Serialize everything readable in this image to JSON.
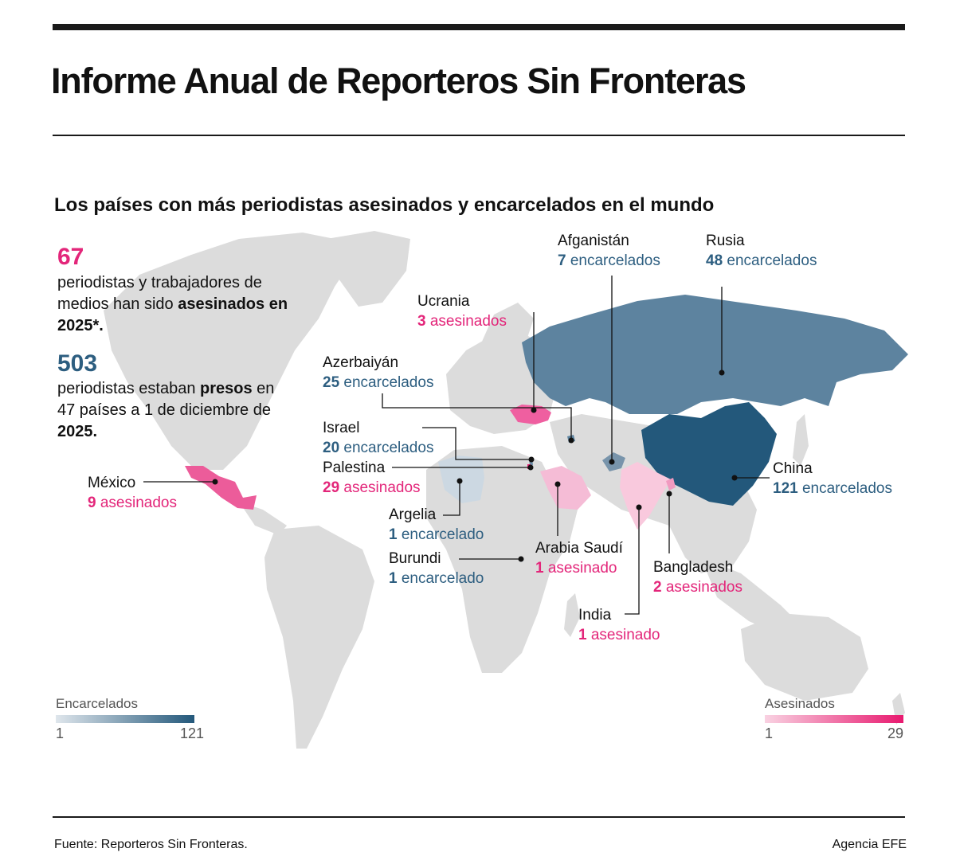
{
  "header": {
    "title": "Informe Anual de Reporteros Sin Fronteras",
    "subtitle": "Los países con más periodistas asesinados y encarcelados en el mundo"
  },
  "stats": {
    "killed_number": "67",
    "killed_text_1": "periodistas y trabajadores de medios han sido ",
    "killed_text_bold": "asesinados en 2025",
    "killed_text_2": "*.",
    "jailed_number": "503",
    "jailed_text_1": "periodistas estaban ",
    "jailed_text_bold": "presos",
    "jailed_text_2": " en 47 países a 1 de diciembre de ",
    "jailed_text_bold_2": "2025",
    "jailed_text_3": "."
  },
  "countries": [
    {
      "name": "Afganistán",
      "count": "7",
      "unit": "encarcelados",
      "type": "jailed"
    },
    {
      "name": "Rusia",
      "count": "48",
      "unit": "encarcelados",
      "type": "jailed"
    },
    {
      "name": "Ucrania",
      "count": "3",
      "unit": "asesinados",
      "type": "killed"
    },
    {
      "name": "Azerbaiyán",
      "count": "25",
      "unit": "encarcelados",
      "type": "jailed"
    },
    {
      "name": "Israel",
      "count": "20",
      "unit": "encarcelados",
      "type": "jailed"
    },
    {
      "name": "Palestina",
      "count": "29",
      "unit": "asesinados",
      "type": "killed"
    },
    {
      "name": "México",
      "count": "9",
      "unit": "asesinados",
      "type": "killed"
    },
    {
      "name": "Argelia",
      "count": "1",
      "unit": "encarcelado",
      "type": "jailed"
    },
    {
      "name": "Burundi",
      "count": "1",
      "unit": "encarcelado",
      "type": "jailed"
    },
    {
      "name": "Arabia Saudí",
      "count": "1",
      "unit": "asesinado",
      "type": "killed"
    },
    {
      "name": "China",
      "count": "121",
      "unit": "encarcelados",
      "type": "jailed"
    },
    {
      "name": "Bangladesh",
      "count": "2",
      "unit": "asesinados",
      "type": "killed"
    },
    {
      "name": "India",
      "count": "1",
      "unit": "asesinado",
      "type": "killed"
    }
  ],
  "legend": {
    "jailed": {
      "title": "Encarcelados",
      "min": "1",
      "max": "121",
      "color_min": "#dfe6ec",
      "color_max": "#23587b"
    },
    "killed": {
      "title": "Asesinados",
      "min": "1",
      "max": "29",
      "color_min": "#f9d2e2",
      "color_max": "#e8196f"
    }
  },
  "colors": {
    "base_land": "#dcdcdc",
    "jailed_text": "#2d5e80",
    "killed_text": "#e3267a"
  },
  "footer": {
    "source": "Fuente: Reporteros Sin Fronteras.",
    "credit": "Agencia EFE"
  }
}
